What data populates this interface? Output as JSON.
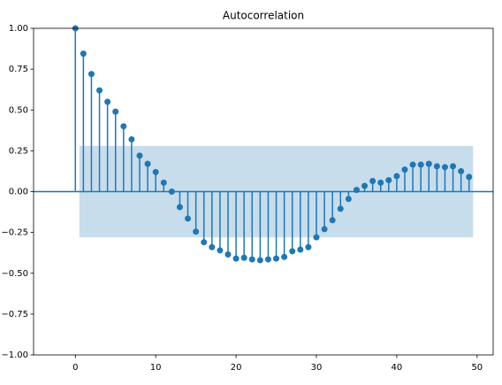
{
  "chart_data": {
    "type": "stem",
    "title": "Autocorrelation",
    "color": "#1f77b4",
    "x": [
      0,
      1,
      2,
      3,
      4,
      5,
      6,
      7,
      8,
      9,
      10,
      11,
      12,
      13,
      14,
      15,
      16,
      17,
      18,
      19,
      20,
      21,
      22,
      23,
      24,
      25,
      26,
      27,
      28,
      29,
      30,
      31,
      32,
      33,
      34,
      35,
      36,
      37,
      38,
      39,
      40,
      41,
      42,
      43,
      44,
      45,
      46,
      47,
      48,
      49
    ],
    "values": [
      1.0,
      0.845,
      0.72,
      0.62,
      0.55,
      0.49,
      0.4,
      0.32,
      0.22,
      0.17,
      0.12,
      0.055,
      0.0,
      -0.095,
      -0.165,
      -0.245,
      -0.31,
      -0.34,
      -0.36,
      -0.385,
      -0.41,
      -0.405,
      -0.415,
      -0.42,
      -0.415,
      -0.41,
      -0.4,
      -0.365,
      -0.355,
      -0.34,
      -0.28,
      -0.23,
      -0.175,
      -0.105,
      -0.045,
      0.01,
      0.035,
      0.065,
      0.055,
      0.07,
      0.095,
      0.135,
      0.165,
      0.165,
      0.17,
      0.155,
      0.15,
      0.155,
      0.125,
      0.09
    ],
    "confidence_band": {
      "lower": -0.28,
      "upper": 0.28
    },
    "xlim": [
      -5.2,
      52
    ],
    "xticks": [
      0,
      10,
      20,
      30,
      40,
      50
    ],
    "ylim": [
      -1,
      1
    ],
    "yticks": [
      {
        "value": -1,
        "label": "−1.00"
      },
      {
        "value": -0.75,
        "label": "−0.75"
      },
      {
        "value": -0.5,
        "label": "−0.50"
      },
      {
        "value": -0.25,
        "label": "−0.25"
      },
      {
        "value": 0,
        "label": "0.00"
      },
      {
        "value": 0.25,
        "label": "0.25"
      },
      {
        "value": 0.5,
        "label": "0.50"
      },
      {
        "value": 0.75,
        "label": "0.75"
      },
      {
        "value": 1,
        "label": "1.00"
      }
    ]
  }
}
